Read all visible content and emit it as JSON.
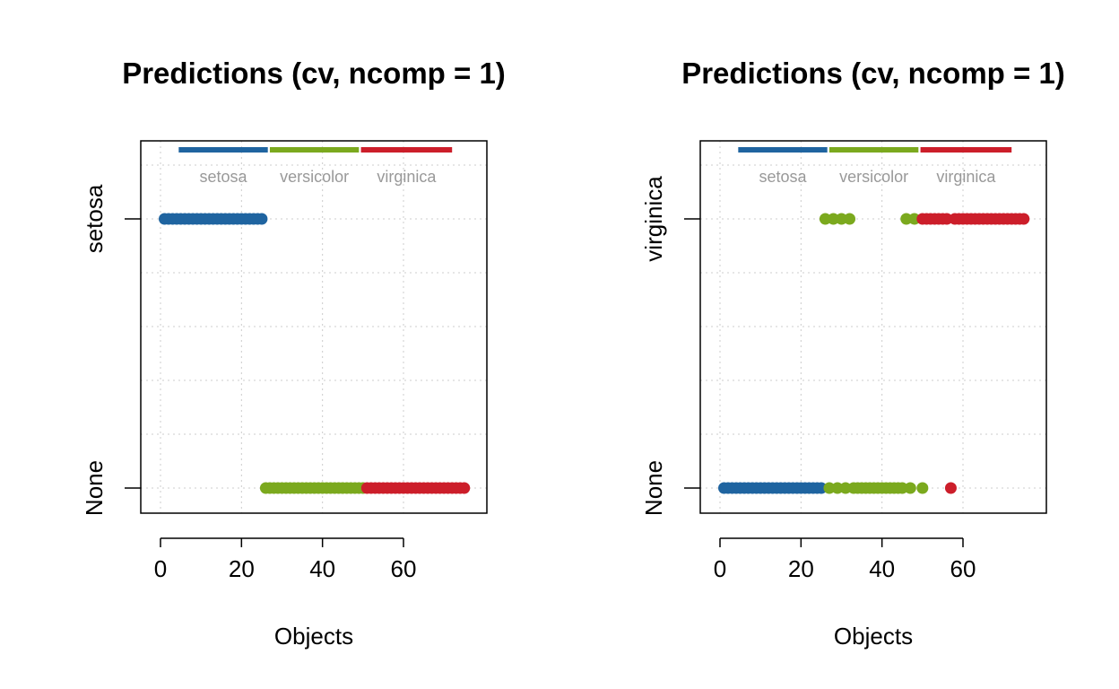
{
  "colors": {
    "setosa": "#1f64a0",
    "versicolor": "#7ba91e",
    "virginica": "#cc1e2a",
    "grid": "#cccccc",
    "legend_text": "#999999"
  },
  "chart_data": [
    {
      "type": "scatter",
      "title": "Predictions (cv, ncomp = 1)",
      "xlabel": "Objects",
      "ylabel": "",
      "xlim": [
        -5,
        80
      ],
      "x_ticks": [
        "0",
        "20",
        "40",
        "60"
      ],
      "y_categories": [
        "None",
        "setosa"
      ],
      "legend": [
        "setosa",
        "versicolor",
        "virginica"
      ],
      "legend_position": "top",
      "grid": true,
      "series": [
        {
          "name": "setosa",
          "color_key": "setosa",
          "points": [
            {
              "x_range": [
                1,
                25
              ],
              "y": "setosa"
            }
          ]
        },
        {
          "name": "versicolor",
          "color_key": "versicolor",
          "points": [
            {
              "x_range": [
                26,
                50
              ],
              "y": "None"
            }
          ]
        },
        {
          "name": "virginica",
          "color_key": "virginica",
          "points": [
            {
              "x_range": [
                51,
                75
              ],
              "y": "None"
            }
          ]
        }
      ]
    },
    {
      "type": "scatter",
      "title": "Predictions (cv, ncomp = 1)",
      "xlabel": "Objects",
      "ylabel": "",
      "xlim": [
        -5,
        80
      ],
      "x_ticks": [
        "0",
        "20",
        "40",
        "60"
      ],
      "y_categories": [
        "None",
        "virginica"
      ],
      "legend": [
        "setosa",
        "versicolor",
        "virginica"
      ],
      "legend_position": "top",
      "grid": true,
      "series": [
        {
          "name": "setosa",
          "color_key": "setosa",
          "points": [
            {
              "x_range": [
                1,
                25
              ],
              "y": "None"
            }
          ]
        },
        {
          "name": "versicolor",
          "color_key": "versicolor",
          "points": [
            {
              "x_list": [
                26,
                28,
                30,
                32
              ],
              "y": "virginica"
            },
            {
              "x_list": [
                46,
                48
              ],
              "y": "virginica"
            },
            {
              "x_list": [
                27,
                29,
                31
              ],
              "y": "None"
            },
            {
              "x_range": [
                33,
                45
              ],
              "y": "None"
            },
            {
              "x_list": [
                47,
                50
              ],
              "y": "None"
            }
          ]
        },
        {
          "name": "virginica",
          "color_key": "virginica",
          "points": [
            {
              "x_range": [
                50,
                56
              ],
              "y": "virginica"
            },
            {
              "x_range": [
                58,
                75
              ],
              "y": "virginica"
            },
            {
              "x_list": [
                57
              ],
              "y": "None"
            }
          ]
        }
      ]
    }
  ]
}
